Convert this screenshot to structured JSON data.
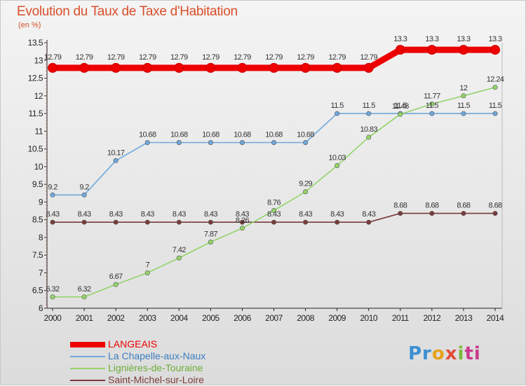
{
  "chart_data": {
    "type": "line",
    "title": "Evolution du Taux de Taxe d'Habitation",
    "ylabel": "(en %)",
    "xlabel": "",
    "x": [
      "2000",
      "2001",
      "2002",
      "2003",
      "2004",
      "2005",
      "2006",
      "2007",
      "2008",
      "2009",
      "2010",
      "2011",
      "2012",
      "2013",
      "2014"
    ],
    "ylim": [
      6,
      13.5
    ],
    "yticks": [
      "6",
      "6.5",
      "7",
      "7.5",
      "8",
      "8.5",
      "9",
      "9.5",
      "10",
      "10.5",
      "11",
      "11.5",
      "12",
      "12.5",
      "13",
      "13.5"
    ],
    "grid": false,
    "legend_position": "bottom-left",
    "series": [
      {
        "name": "LANGEAIS",
        "color": "#ee0000",
        "values": [
          12.79,
          12.79,
          12.79,
          12.79,
          12.79,
          12.79,
          12.79,
          12.79,
          12.79,
          12.79,
          12.79,
          13.3,
          13.3,
          13.3,
          13.3
        ],
        "labels": [
          "12.79",
          "12.79",
          "12.79",
          "12.79",
          "12.79",
          "12.79",
          "12.79",
          "12.79",
          "12.79",
          "12.79",
          "12.79",
          "13.3",
          "13.3",
          "13.3",
          "13.3"
        ]
      },
      {
        "name": "La Chapelle-aux-Naux",
        "color": "#6fa8dc",
        "values": [
          9.2,
          9.2,
          10.17,
          10.68,
          10.68,
          10.68,
          10.68,
          10.68,
          10.68,
          11.5,
          11.5,
          11.5,
          11.5,
          11.5,
          11.5
        ],
        "labels": [
          "9.2",
          "9.2",
          "10.17",
          "10.68",
          "10.68",
          "10.68",
          "10.68",
          "10.68",
          "10.68",
          "11.5",
          "11.5",
          "11.5",
          "11.5",
          "11.5",
          "11.5"
        ]
      },
      {
        "name": "Lignières-de-Touraine",
        "color": "#93d46a",
        "values": [
          6.32,
          6.32,
          6.67,
          7,
          7.42,
          7.87,
          8.26,
          8.76,
          9.29,
          10.03,
          10.83,
          11.48,
          11.77,
          12,
          12.24
        ],
        "labels": [
          "6.32",
          "6.32",
          "6.67",
          "7",
          "7.42",
          "7.87",
          "8.26",
          "8.76",
          "9.29",
          "10.03",
          "10.83",
          "11.48",
          "11.77",
          "12",
          "12.24"
        ]
      },
      {
        "name": "Saint-Michel-sur-Loire",
        "color": "#7a3b3b",
        "values": [
          8.43,
          8.43,
          8.43,
          8.43,
          8.43,
          8.43,
          8.43,
          8.43,
          8.43,
          8.43,
          8.43,
          8.68,
          8.68,
          8.68,
          8.68
        ],
        "labels": [
          "8.43",
          "8.43",
          "8.43",
          "8.43",
          "8.43",
          "8.43",
          "8.43",
          "8.43",
          "8.43",
          "8.43",
          "8.43",
          "8.68",
          "8.68",
          "8.68",
          "8.68"
        ]
      }
    ]
  },
  "brand": {
    "p1": "Pr",
    "p2": "o",
    "p3": "x",
    "p4": "i",
    "p5": "ti"
  }
}
